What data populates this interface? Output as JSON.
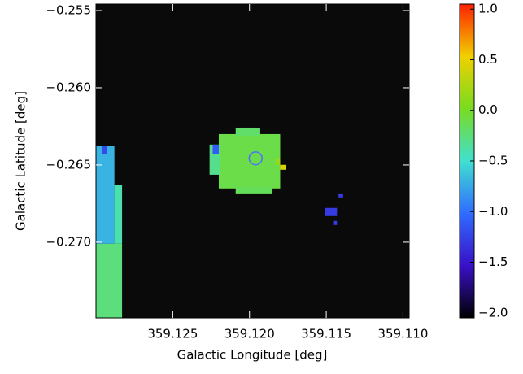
{
  "chart_data": {
    "type": "image",
    "x_label": "Galactic Longitude [deg]",
    "y_label": "Galactic Latitude [deg]",
    "xlim": [
      359.13,
      359.1096
    ],
    "ylim": [
      -0.2749,
      -0.25458
    ],
    "xticks": [
      359.125,
      {
        "value": 359.12,
        "label": "359.120"
      },
      359.115,
      {
        "value": 359.11,
        "label": "359.110"
      }
    ],
    "yticks": [
      {
        "value": -0.255,
        "label": "−0.255"
      },
      {
        "value": -0.26,
        "label": "−0.260"
      },
      {
        "value": -0.265,
        "label": "−0.265"
      },
      {
        "value": -0.27,
        "label": "−0.270"
      }
    ],
    "background": "#0a0a0a",
    "colorbar": {
      "clim": [
        -2.05,
        1.05
      ],
      "colormap": [
        "#000000",
        "#3a10c8",
        "#2f6cff",
        "#40e0d0",
        "#78dc20",
        "#f0d000",
        "#ff2000"
      ],
      "ticks": [
        {
          "value": 1,
          "label": "1.0"
        },
        0.5,
        {
          "value": 0,
          "label": "0.0"
        },
        {
          "value": -0.5,
          "label": "−0.5"
        },
        {
          "value": -1,
          "label": "−1.0"
        },
        {
          "value": -1.5,
          "label": "−1.5"
        },
        {
          "value": -2,
          "label": "−2.0"
        }
      ]
    },
    "regions": [
      {
        "x": [
          359.122,
          359.118
        ],
        "y": [
          -0.263,
          -0.26652
        ],
        "value": -0.1
      },
      {
        "x": [
          359.1226,
          359.1219
        ],
        "y": [
          -0.26368,
          -0.26563
        ],
        "value": -0.3
      },
      {
        "x": [
          359.1209,
          359.1193
        ],
        "y": [
          -0.26258,
          -0.2631
        ],
        "value": -0.2
      },
      {
        "x": [
          359.1209,
          359.1185
        ],
        "y": [
          -0.26642,
          -0.26684
        ],
        "value": -0.15
      },
      {
        "x": [
          359.1224,
          359.122
        ],
        "y": [
          -0.26368,
          -0.26431
        ],
        "value": -1.1
      },
      {
        "x": [
          359.1183,
          359.118
        ],
        "y": [
          -0.26457,
          -0.26499
        ],
        "value": 0.15
      },
      {
        "x": [
          359.118,
          359.1176
        ],
        "y": [
          -0.26499,
          -0.26531
        ],
        "value": 0.45
      },
      {
        "x": [
          359.13,
          359.1288
        ],
        "y": [
          -0.26378,
          -0.2701
        ],
        "value": -0.7
      },
      {
        "x": [
          359.1288,
          359.1283
        ],
        "y": [
          -0.2663,
          -0.2701
        ],
        "value": -0.4
      },
      {
        "x": [
          359.13,
          359.1283
        ],
        "y": [
          -0.2701,
          -0.27488
        ],
        "value": -0.25
      },
      {
        "x": [
          359.1296,
          359.1293
        ],
        "y": [
          -0.26378,
          -0.26431
        ],
        "value": -1.2
      },
      {
        "x": [
          359.1151,
          359.1143
        ],
        "y": [
          -0.26778,
          -0.26831
        ],
        "value": -1.3
      },
      {
        "x": [
          359.1142,
          359.1139
        ],
        "y": [
          -0.26684,
          -0.2671
        ],
        "value": -1.3
      },
      {
        "x": [
          359.1145,
          359.1143
        ],
        "y": [
          -0.26862,
          -0.26889
        ],
        "value": -1.3
      }
    ],
    "marker": {
      "x": 359.1196,
      "y": -0.26457,
      "r": 0.00042,
      "color": "#5070ff"
    }
  }
}
